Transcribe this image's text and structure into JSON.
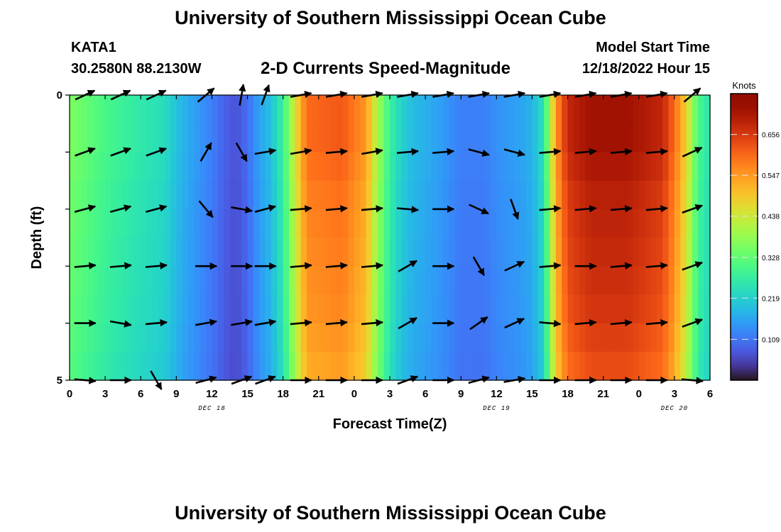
{
  "header": {
    "title": "University of Southern Mississippi Ocean Cube",
    "station": "KATA1",
    "coords": "30.2580N  88.2130W",
    "subtitle": "2-D Currents Speed-Magnitude",
    "model_start_label": "Model Start Time",
    "model_start_value": "12/18/2022 Hour 15"
  },
  "footer": {
    "title": "University of Southern Mississippi Ocean Cube"
  },
  "colorbar": {
    "unit": "Knots",
    "ticks": [
      "0.656",
      "0.547",
      "0.438",
      "0.328",
      "0.219",
      "0.109"
    ],
    "tick_values": [
      0.656,
      0.547,
      0.438,
      0.328,
      0.219,
      0.109
    ],
    "vmin": 0.0,
    "vmax": 0.765
  },
  "chart_data": {
    "type": "heatmap",
    "title": "2-D Currents Speed-Magnitude",
    "xlabel": "Forecast Time(Z)",
    "ylabel": "Depth (ft)",
    "x_ticks": [
      "0",
      "3",
      "6",
      "9",
      "12",
      "15",
      "18",
      "21",
      "0",
      "3",
      "6",
      "9",
      "12",
      "15",
      "18",
      "21",
      "0",
      "3",
      "6"
    ],
    "day_labels": [
      {
        "text": "DEC 18",
        "hour": 12
      },
      {
        "text": "DEC 19",
        "hour": 36
      },
      {
        "text": "DEC 20",
        "hour": 51
      }
    ],
    "y_ticks": [
      "0",
      "5"
    ],
    "y_range": [
      0,
      5
    ],
    "x_range_hours": [
      0,
      54
    ],
    "colormap": "turbo",
    "speed_profile": {
      "hours": [
        0,
        3,
        6,
        8,
        9,
        10,
        12,
        13,
        14,
        15,
        16,
        17,
        18,
        19,
        20,
        23,
        25,
        26,
        27,
        28,
        29,
        31,
        32,
        33,
        35,
        36,
        38,
        39,
        40,
        41,
        42,
        44,
        47,
        50,
        51,
        52,
        53,
        54
      ],
      "knots": [
        0.36,
        0.3,
        0.26,
        0.24,
        0.2,
        0.17,
        0.12,
        0.09,
        0.07,
        0.1,
        0.16,
        0.2,
        0.28,
        0.45,
        0.6,
        0.62,
        0.55,
        0.4,
        0.28,
        0.22,
        0.19,
        0.16,
        0.14,
        0.12,
        0.12,
        0.14,
        0.16,
        0.18,
        0.25,
        0.55,
        0.68,
        0.72,
        0.72,
        0.68,
        0.6,
        0.48,
        0.3,
        0.25
      ]
    },
    "depth_factor": [
      1.0,
      1.0,
      0.98,
      0.96,
      0.95,
      0.94,
      0.93,
      0.92,
      0.9,
      0.88
    ],
    "vector_rows_depth_ft": [
      0,
      1,
      2,
      3,
      4,
      5
    ],
    "vector_cols_hours": [
      1.3,
      4.3,
      7.3,
      11.5,
      14.5,
      16.5,
      19.5,
      22.5,
      25.5,
      28.5,
      31.5,
      34.5,
      37.5,
      40.5,
      43.5,
      46.5,
      49.5,
      52.5
    ],
    "vectors_angle_deg": [
      [
        -25,
        -25,
        -25,
        -40,
        -80,
        -70,
        -10,
        -10,
        -10,
        -10,
        -10,
        -10,
        -10,
        -10,
        -10,
        -10,
        -10,
        -40
      ],
      [
        -20,
        -20,
        -20,
        -60,
        60,
        -10,
        -10,
        -5,
        -10,
        -5,
        -5,
        15,
        15,
        -5,
        -5,
        -5,
        -5,
        -25
      ],
      [
        -15,
        -15,
        -15,
        50,
        10,
        -15,
        -5,
        -5,
        -5,
        5,
        0,
        25,
        70,
        -5,
        -5,
        -5,
        -5,
        -20
      ],
      [
        -5,
        -5,
        -5,
        0,
        0,
        0,
        -5,
        -5,
        -5,
        -30,
        0,
        60,
        -25,
        -5,
        0,
        -5,
        -5,
        -20
      ],
      [
        0,
        10,
        -5,
        -10,
        -10,
        -10,
        -5,
        -5,
        -5,
        -30,
        0,
        -35,
        -25,
        5,
        -5,
        -5,
        -5,
        -20
      ],
      [
        5,
        0,
        60,
        -15,
        -20,
        -20,
        0,
        0,
        0,
        -20,
        0,
        -15,
        -10,
        0,
        0,
        0,
        0,
        5
      ]
    ]
  }
}
